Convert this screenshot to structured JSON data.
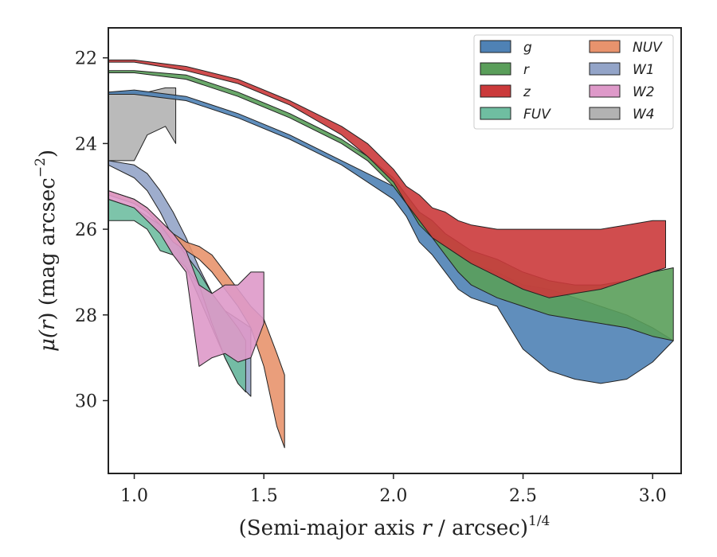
{
  "chart_data": {
    "type": "area",
    "xlabel_main": "(Semi-major axis ",
    "xlabel_var": "r",
    "xlabel_rest": " / arcsec)",
    "xlabel_sup": "1/4",
    "ylabel_main": "μ(",
    "ylabel_var": "r",
    "ylabel_rest": ") (mag arcsec",
    "ylabel_sup": "−2",
    "ylabel_end": ")",
    "xlim": [
      0.9,
      3.11
    ],
    "ylim": [
      31.7,
      21.3
    ],
    "y_inverted": true,
    "x_ticks": [
      1.0,
      1.5,
      2.0,
      2.5,
      3.0
    ],
    "x_tick_labels": [
      "1.0",
      "1.5",
      "2.0",
      "2.5",
      "3.0"
    ],
    "y_ticks": [
      22,
      24,
      26,
      28,
      30
    ],
    "y_tick_labels": [
      "22",
      "24",
      "26",
      "28",
      "30"
    ],
    "grid": false,
    "legend_position": "top-right",
    "legend_columns": 2,
    "series": [
      {
        "name": "W4",
        "color": "#b2b2b2",
        "x": [
          0.9,
          1.0,
          1.05,
          1.12,
          1.16
        ],
        "y_upper": [
          22.8,
          22.8,
          22.8,
          22.7,
          22.7
        ],
        "y_lower": [
          24.4,
          24.4,
          23.8,
          23.6,
          24.0
        ]
      },
      {
        "name": "W1",
        "color": "#93a4c8",
        "x": [
          0.9,
          1.0,
          1.05,
          1.1,
          1.15,
          1.2,
          1.25,
          1.3,
          1.35,
          1.4,
          1.45
        ],
        "y_upper": [
          24.4,
          24.5,
          24.7,
          25.1,
          25.6,
          26.2,
          26.9,
          27.5,
          27.9,
          28.1,
          28.3
        ],
        "y_lower": [
          24.5,
          24.8,
          25.1,
          25.6,
          26.2,
          26.9,
          27.6,
          28.3,
          29.0,
          29.6,
          29.9
        ]
      },
      {
        "name": "FUV",
        "color": "#6fbea1",
        "x": [
          0.9,
          1.0,
          1.05,
          1.1,
          1.15,
          1.2,
          1.25,
          1.3,
          1.35,
          1.4,
          1.43
        ],
        "y_upper": [
          25.3,
          25.5,
          25.7,
          25.9,
          26.2,
          26.6,
          27.0,
          27.5,
          27.9,
          28.3,
          28.6
        ],
        "y_lower": [
          25.8,
          25.8,
          26.0,
          26.5,
          26.6,
          26.9,
          27.3,
          28.2,
          29.0,
          29.6,
          29.8
        ]
      },
      {
        "name": "NUV",
        "color": "#e8936d",
        "x": [
          0.9,
          1.0,
          1.05,
          1.1,
          1.15,
          1.2,
          1.25,
          1.3,
          1.35,
          1.4,
          1.45,
          1.5,
          1.55,
          1.58
        ],
        "y_upper": [
          25.1,
          25.3,
          25.5,
          25.8,
          26.1,
          26.3,
          26.4,
          26.6,
          27.0,
          27.4,
          27.8,
          28.1,
          28.9,
          29.4
        ],
        "y_lower": [
          25.2,
          25.4,
          25.6,
          25.9,
          26.3,
          26.5,
          26.7,
          27.0,
          27.4,
          27.8,
          28.3,
          29.2,
          30.6,
          31.1
        ]
      },
      {
        "name": "W2",
        "color": "#de99c9",
        "x": [
          0.9,
          1.0,
          1.05,
          1.1,
          1.15,
          1.2,
          1.25,
          1.3,
          1.35,
          1.4,
          1.45,
          1.5
        ],
        "y_upper": [
          25.1,
          25.3,
          25.5,
          25.8,
          26.1,
          26.5,
          27.3,
          27.5,
          27.3,
          27.3,
          27.0,
          27.0
        ],
        "y_lower": [
          25.3,
          25.5,
          25.8,
          26.1,
          26.6,
          27.0,
          29.2,
          29.0,
          28.9,
          29.1,
          29.0,
          28.2
        ]
      },
      {
        "name": "g",
        "color": "#4f82b5",
        "x": [
          0.9,
          1.0,
          1.2,
          1.4,
          1.6,
          1.8,
          1.9,
          2.0,
          2.05,
          2.1,
          2.15,
          2.2,
          2.25,
          2.3,
          2.4,
          2.5,
          2.6,
          2.7,
          2.8,
          2.9,
          3.0,
          3.08
        ],
        "y_upper": [
          22.8,
          22.75,
          22.9,
          23.3,
          23.8,
          24.4,
          24.7,
          25.0,
          25.4,
          25.8,
          26.1,
          26.4,
          26.6,
          26.8,
          27.0,
          27.3,
          27.4,
          27.6,
          27.8,
          28.0,
          28.3,
          28.6
        ],
        "y_lower": [
          22.85,
          22.85,
          23.0,
          23.4,
          23.9,
          24.5,
          24.9,
          25.3,
          25.7,
          26.3,
          26.6,
          27.0,
          27.4,
          27.6,
          27.8,
          28.8,
          29.3,
          29.5,
          29.6,
          29.5,
          29.1,
          28.6
        ]
      },
      {
        "name": "r",
        "color": "#5a9e5a",
        "x": [
          0.9,
          1.0,
          1.2,
          1.4,
          1.6,
          1.8,
          1.9,
          2.0,
          2.05,
          2.1,
          2.15,
          2.2,
          2.25,
          2.3,
          2.4,
          2.5,
          2.6,
          2.7,
          2.8,
          2.9,
          3.0,
          3.08
        ],
        "y_upper": [
          22.3,
          22.3,
          22.4,
          22.8,
          23.3,
          23.9,
          24.3,
          24.8,
          25.2,
          25.6,
          25.8,
          26.1,
          26.3,
          26.5,
          26.7,
          27.0,
          27.2,
          27.3,
          27.3,
          27.2,
          27.0,
          26.9
        ],
        "y_lower": [
          22.35,
          22.35,
          22.5,
          22.9,
          23.4,
          24.0,
          24.4,
          25.0,
          25.4,
          25.9,
          26.2,
          26.6,
          27.0,
          27.3,
          27.6,
          27.8,
          28.0,
          28.1,
          28.2,
          28.3,
          28.5,
          28.6
        ]
      },
      {
        "name": "z",
        "color": "#cb3a3b",
        "x": [
          0.9,
          1.0,
          1.2,
          1.4,
          1.6,
          1.8,
          1.9,
          2.0,
          2.05,
          2.1,
          2.15,
          2.2,
          2.25,
          2.3,
          2.4,
          2.5,
          2.6,
          2.7,
          2.8,
          2.9,
          3.0,
          3.05
        ],
        "y_upper": [
          22.05,
          22.05,
          22.2,
          22.5,
          23.0,
          23.6,
          24.0,
          24.6,
          25.0,
          25.2,
          25.5,
          25.6,
          25.8,
          25.9,
          26.0,
          26.0,
          26.0,
          26.0,
          26.0,
          25.9,
          25.8,
          25.8
        ],
        "y_lower": [
          22.1,
          22.1,
          22.3,
          22.6,
          23.1,
          23.8,
          24.3,
          24.9,
          25.4,
          25.8,
          26.2,
          26.4,
          26.6,
          26.8,
          27.1,
          27.4,
          27.6,
          27.5,
          27.4,
          27.2,
          27.0,
          26.9
        ]
      }
    ],
    "legend_order": [
      "g",
      "NUV",
      "r",
      "W1",
      "z",
      "W2",
      "FUV",
      "W4"
    ]
  }
}
